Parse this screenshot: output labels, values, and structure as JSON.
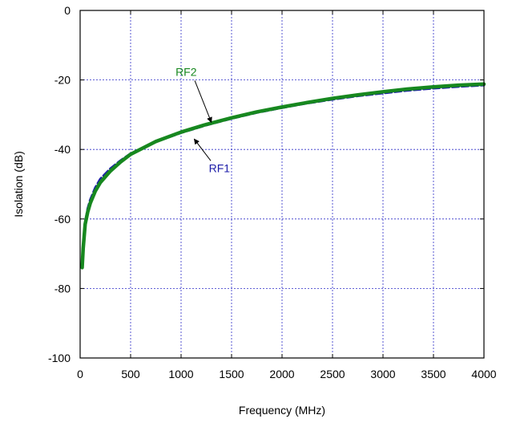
{
  "chart_data": {
    "type": "line",
    "title": "",
    "xlabel": "Frequency (MHz)",
    "ylabel": "Isolation (dB)",
    "xlim": [
      0,
      4000
    ],
    "ylim": [
      -100,
      0
    ],
    "x_ticks": [
      0,
      500,
      1000,
      1500,
      2000,
      2500,
      3000,
      3500,
      4000
    ],
    "y_ticks": [
      0,
      -20,
      -40,
      -60,
      -80,
      -100
    ],
    "x_tick_labels": [
      "0",
      "500",
      "1000",
      "1500",
      "2000",
      "2500",
      "3000",
      "3500",
      "4000"
    ],
    "y_tick_labels": [
      "0",
      "-20",
      "-40",
      "-60",
      "-80",
      "-100"
    ],
    "grid": true,
    "grid_style": "dotted",
    "legend": "none (inline arrow annotations)",
    "series": [
      {
        "name": "RF1",
        "color": "#1c1ca8",
        "style": "dashed",
        "x": [
          20,
          30,
          50,
          75,
          100,
          150,
          200,
          300,
          400,
          500,
          750,
          1000,
          1250,
          1500,
          1750,
          2000,
          2250,
          2500,
          2750,
          3000,
          3250,
          3500,
          3750,
          4000
        ],
        "y": [
          -74,
          -68,
          -61,
          -57,
          -54.5,
          -51,
          -48.5,
          -45.5,
          -43.2,
          -41.2,
          -37.8,
          -35.2,
          -33.0,
          -31.1,
          -29.4,
          -28.0,
          -26.7,
          -25.6,
          -24.6,
          -23.8,
          -23.0,
          -22.4,
          -21.9,
          -21.5
        ]
      },
      {
        "name": "RF2",
        "color": "#17881f",
        "style": "solid",
        "x": [
          20,
          30,
          50,
          75,
          100,
          150,
          200,
          300,
          400,
          500,
          750,
          1000,
          1250,
          1500,
          1750,
          2000,
          2250,
          2500,
          2750,
          3000,
          3250,
          3500,
          3750,
          4000
        ],
        "y": [
          -74,
          -68.5,
          -61.5,
          -58,
          -55.5,
          -52,
          -49.5,
          -46.2,
          -43.6,
          -41.4,
          -37.7,
          -35.0,
          -32.8,
          -30.9,
          -29.2,
          -27.8,
          -26.5,
          -25.3,
          -24.3,
          -23.4,
          -22.6,
          -22.0,
          -21.5,
          -21.2
        ]
      }
    ],
    "annotations": [
      {
        "text": "RF2",
        "color": "#17881f",
        "label_at": [
          1050,
          -18.8
        ],
        "arrow_to": [
          1300,
          -32.2
        ]
      },
      {
        "text": "RF1",
        "color": "#1c1ca8",
        "label_at": [
          1380,
          -46.5
        ],
        "arrow_to": [
          1130,
          -37.0
        ]
      }
    ]
  }
}
